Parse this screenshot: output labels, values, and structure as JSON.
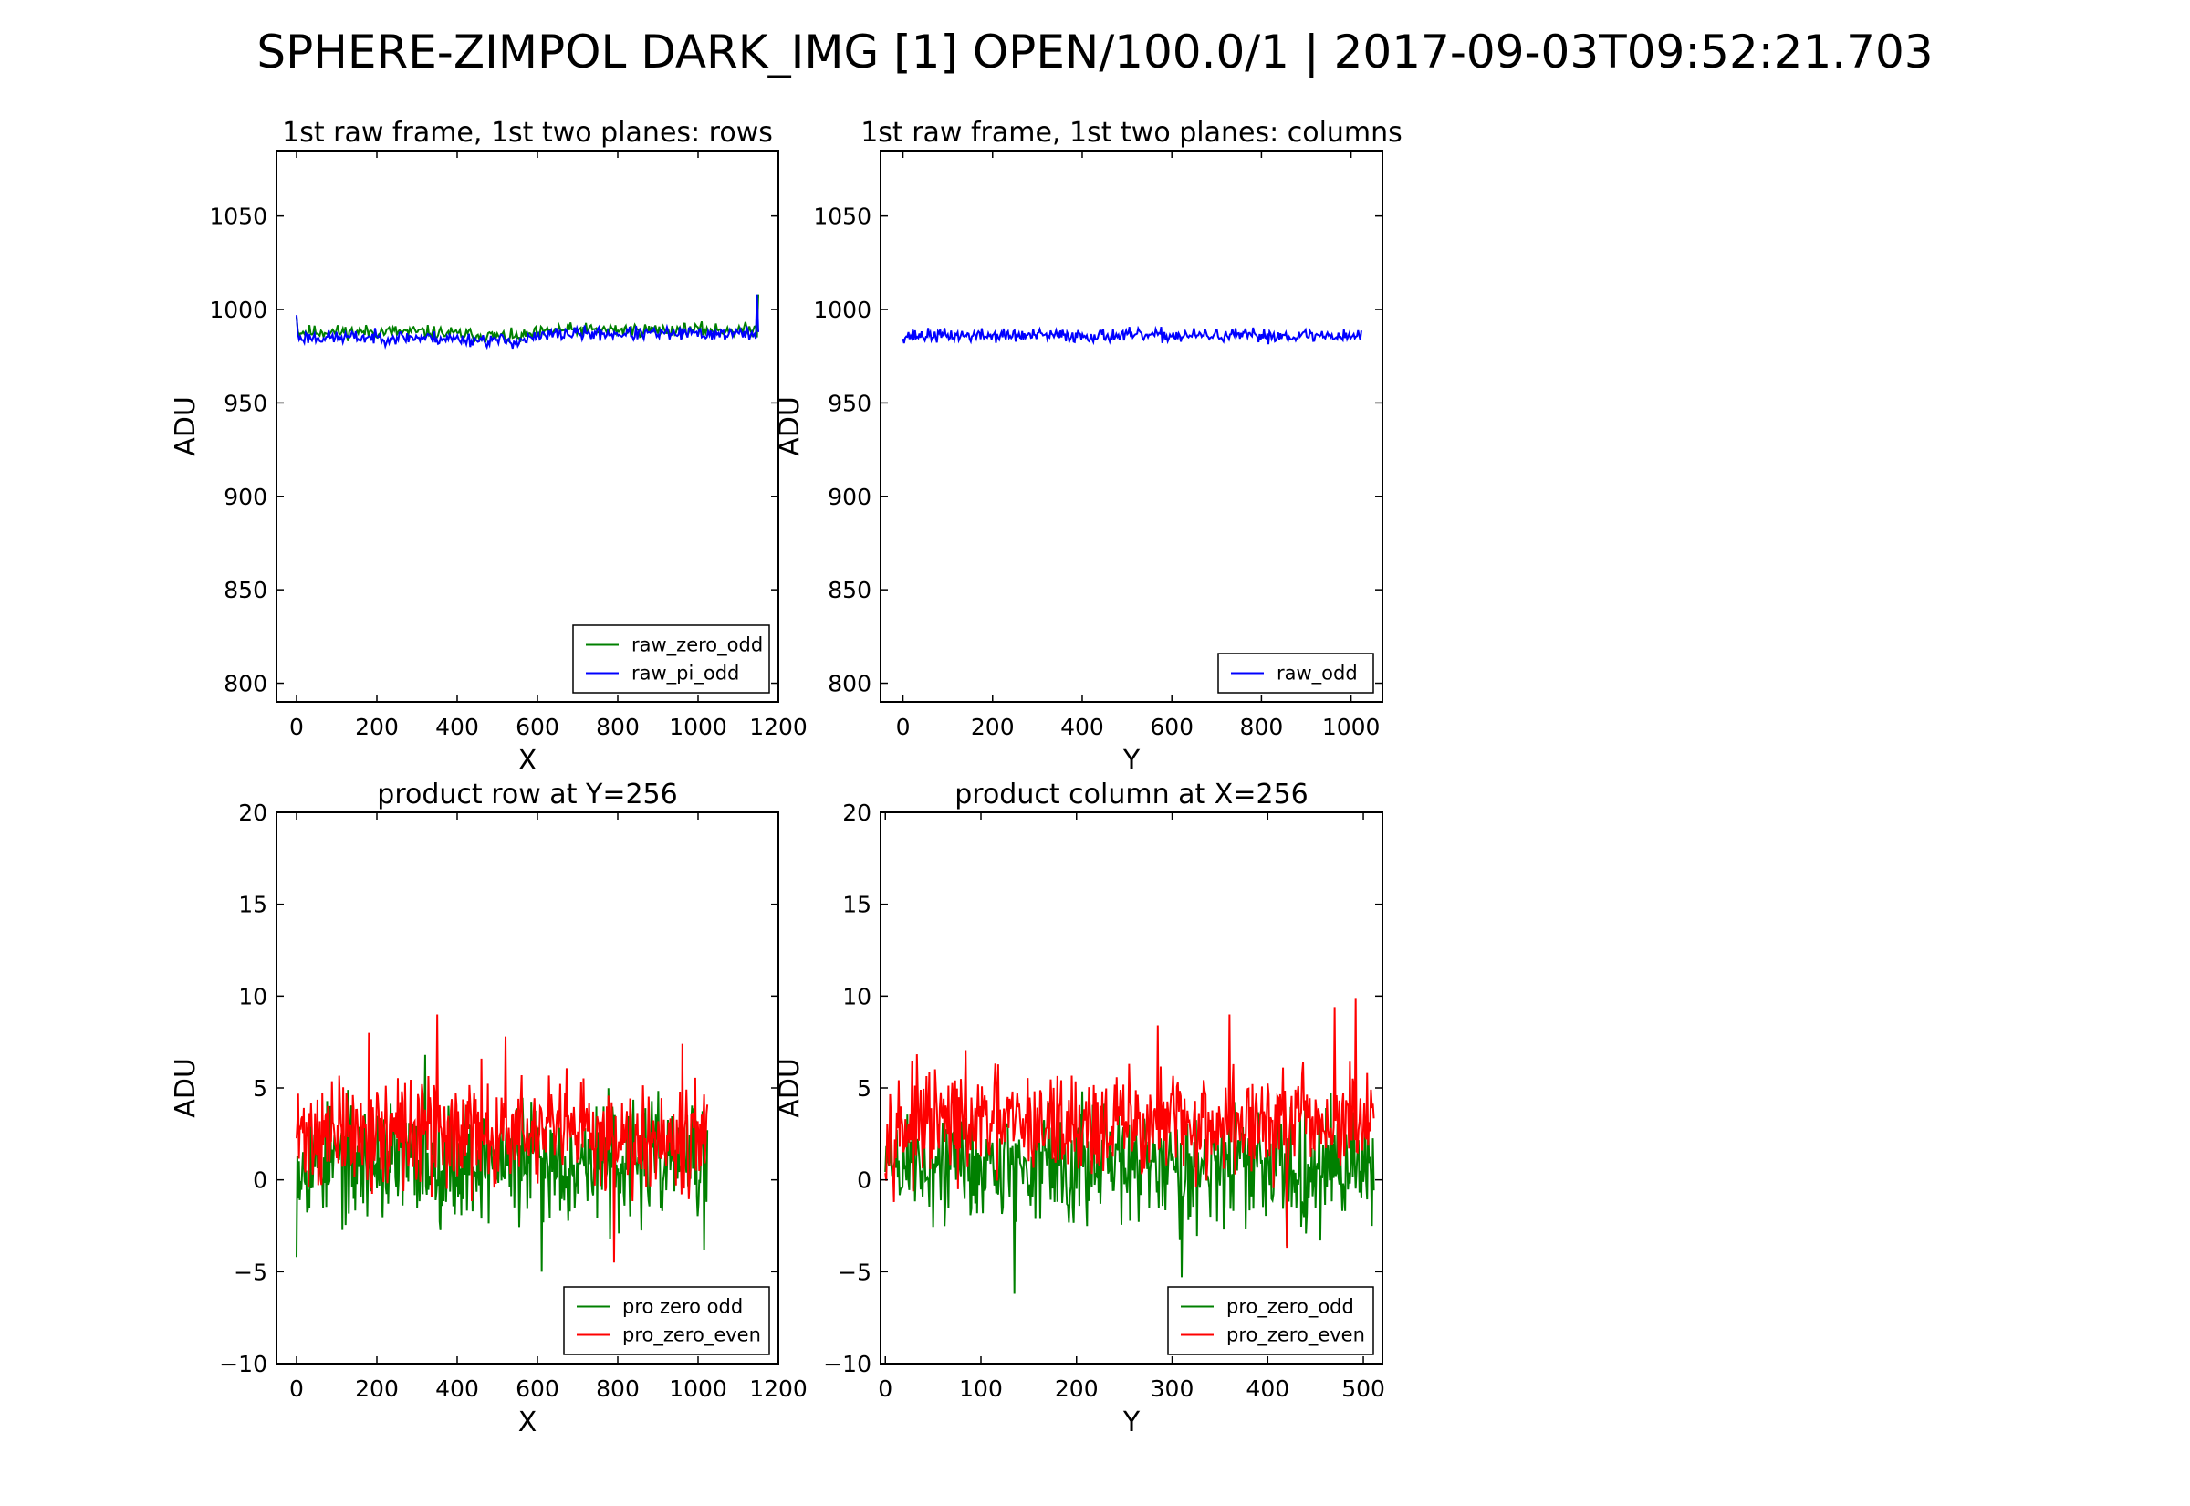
{
  "figure": {
    "suptitle": "SPHERE-ZIMPOL DARK_IMG [1] OPEN/100.0/1  |  2017-09-03T09:52:21.703"
  },
  "chart_data": [
    {
      "id": "rows",
      "type": "line",
      "title": "1st raw frame, 1st two planes: rows",
      "xlabel": "X",
      "ylabel": "ADU",
      "xlim": [
        -50,
        1200
      ],
      "ylim": [
        790,
        1085
      ],
      "xticks": [
        0,
        200,
        400,
        600,
        800,
        1000,
        1200
      ],
      "yticks": [
        800,
        850,
        900,
        950,
        1000,
        1050
      ],
      "grid": false,
      "legend_position": "lower-right",
      "series": [
        {
          "name": "raw_zero_odd",
          "color": "#008000",
          "x_range": [
            0,
            1150
          ],
          "n": 360,
          "base": 988,
          "amp": 3,
          "seed": 11,
          "drift": [
            [
              0,
              988
            ],
            [
              300,
              988
            ],
            [
              550,
              985
            ],
            [
              650,
              989
            ],
            [
              1150,
              989
            ]
          ],
          "spikes": [
            [
              0,
              996
            ],
            [
              1150,
              1008
            ]
          ]
        },
        {
          "name": "raw_pi_odd",
          "color": "#0000ff",
          "x_range": [
            0,
            1150
          ],
          "n": 360,
          "base": 985,
          "amp": 3,
          "seed": 23,
          "drift": [
            [
              0,
              985
            ],
            [
              300,
              985
            ],
            [
              550,
              983
            ],
            [
              650,
              987
            ],
            [
              1150,
              987
            ]
          ],
          "spikes": [
            [
              0,
              997
            ],
            [
              1148,
              1008
            ]
          ]
        }
      ]
    },
    {
      "id": "columns",
      "type": "line",
      "title": "1st raw frame, 1st two planes: columns",
      "xlabel": "Y",
      "ylabel": "ADU",
      "xlim": [
        -50,
        1070
      ],
      "ylim": [
        790,
        1085
      ],
      "xticks": [
        0,
        200,
        400,
        600,
        800,
        1000
      ],
      "yticks": [
        800,
        850,
        900,
        950,
        1000,
        1050
      ],
      "grid": false,
      "legend_position": "lower-right",
      "series": [
        {
          "name": "raw_odd",
          "color": "#0000ff",
          "x_range": [
            0,
            1023
          ],
          "n": 420,
          "base": 986,
          "amp": 3,
          "seed": 37,
          "drift": [
            [
              0,
              986
            ],
            [
              1023,
              986
            ]
          ],
          "spikes": []
        }
      ]
    },
    {
      "id": "product-row",
      "type": "line",
      "title": "product row at Y=256",
      "xlabel": "X",
      "ylabel": "ADU",
      "xlim": [
        -50,
        1200
      ],
      "ylim": [
        -10,
        20
      ],
      "xticks": [
        0,
        200,
        400,
        600,
        800,
        1000,
        1200
      ],
      "yticks": [
        -10,
        -5,
        0,
        5,
        10,
        15,
        20
      ],
      "yticklabels": [
        "−10",
        "−5",
        "0",
        "5",
        "10",
        "15",
        "20"
      ],
      "grid": false,
      "legend_position": "lower-right",
      "series": [
        {
          "name": "pro zero odd",
          "color": "#008000",
          "x_range": [
            0,
            1023
          ],
          "n": 512,
          "base": 1.0,
          "amp": 2.6,
          "seed": 53,
          "drift": [
            [
              0,
              1.0
            ],
            [
              1023,
              1.0
            ]
          ],
          "spikes": [
            [
              610,
              -5.0
            ],
            [
              320,
              6.8
            ],
            [
              0,
              -4.2
            ],
            [
              1015,
              -3.8
            ]
          ]
        },
        {
          "name": "pro_zero_even",
          "color": "#ff0000",
          "x_range": [
            0,
            1023
          ],
          "n": 512,
          "base": 2.5,
          "amp": 2.4,
          "seed": 71,
          "drift": [
            [
              0,
              2.5
            ],
            [
              1023,
              2.5
            ]
          ],
          "spikes": [
            [
              350,
              9.0
            ],
            [
              790,
              -4.5
            ],
            [
              180,
              8.0
            ],
            [
              520,
              7.8
            ],
            [
              960,
              7.4
            ]
          ]
        }
      ]
    },
    {
      "id": "product-column",
      "type": "line",
      "title": "product column at X=256",
      "xlabel": "Y",
      "ylabel": "ADU",
      "xlim": [
        -5,
        520
      ],
      "ylim": [
        -10,
        20
      ],
      "xticks": [
        0,
        100,
        200,
        300,
        400,
        500
      ],
      "yticks": [
        -10,
        -5,
        0,
        5,
        10,
        15,
        20
      ],
      "yticklabels": [
        "−10",
        "−5",
        "0",
        "5",
        "10",
        "15",
        "20"
      ],
      "grid": false,
      "legend_position": "lower-right",
      "series": [
        {
          "name": "pro_zero_odd",
          "color": "#008000",
          "x_range": [
            0,
            511
          ],
          "n": 512,
          "base": 0.8,
          "amp": 2.6,
          "seed": 89,
          "drift": [
            [
              0,
              0.8
            ],
            [
              511,
              0.8
            ]
          ],
          "spikes": [
            [
              135,
              -6.2
            ],
            [
              310,
              -5.3
            ],
            [
              420,
              -3.6
            ],
            [
              455,
              -3.3
            ]
          ]
        },
        {
          "name": "pro_zero_even",
          "color": "#ff0000",
          "x_range": [
            0,
            511
          ],
          "n": 512,
          "base": 3.0,
          "amp": 2.4,
          "seed": 97,
          "drift": [
            [
              0,
              3.0
            ],
            [
              511,
              3.0
            ]
          ],
          "spikes": [
            [
              492,
              9.9
            ],
            [
              470,
              9.4
            ],
            [
              360,
              9.0
            ],
            [
              420,
              -3.7
            ],
            [
              285,
              8.4
            ]
          ]
        }
      ]
    }
  ]
}
